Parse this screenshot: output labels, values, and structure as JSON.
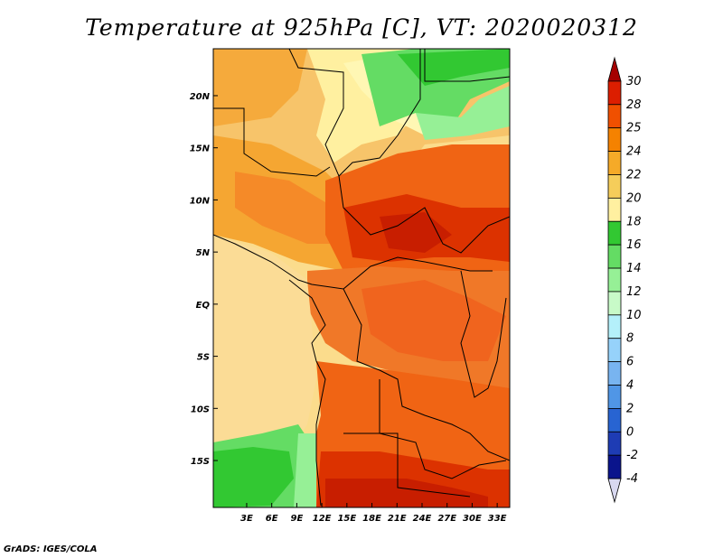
{
  "title": "Temperature at 925hPa [C], VT: 2020020312",
  "credit": "GrADS: IGES/COLA",
  "map": {
    "lon_range": [
      -1,
      34.5
    ],
    "lat_range": [
      -19.5,
      24.5
    ],
    "lon_ticks": [
      "3E",
      "6E",
      "9E",
      "12E",
      "15E",
      "18E",
      "21E",
      "24E",
      "27E",
      "30E",
      "33E"
    ],
    "lon_tick_values": [
      3,
      6,
      9,
      12,
      15,
      18,
      21,
      24,
      27,
      30,
      33
    ],
    "lat_ticks": [
      "20N",
      "15N",
      "10N",
      "5N",
      "EQ",
      "5S",
      "10S",
      "15S"
    ],
    "lat_tick_values": [
      20,
      15,
      10,
      5,
      0,
      -5,
      -10,
      -15
    ],
    "icon": "temperature-field-map"
  },
  "colorbar": {
    "labels": [
      "30",
      "28",
      "25",
      "24",
      "22",
      "20",
      "18",
      "16",
      "14",
      "12",
      "10",
      "8",
      "6",
      "4",
      "2",
      "0",
      "-2",
      "-4"
    ],
    "colors": [
      "#a50000",
      "#dc1e00",
      "#f05000",
      "#f58200",
      "#f5aa28",
      "#f5cd5a",
      "#fff0a0",
      "#32c832",
      "#64dc64",
      "#96f096",
      "#c8fac8",
      "#b4f0fa",
      "#96d2fa",
      "#78b4f0",
      "#5096e6",
      "#2864d2",
      "#1e3cb4",
      "#0a148c",
      "#06065a"
    ]
  }
}
